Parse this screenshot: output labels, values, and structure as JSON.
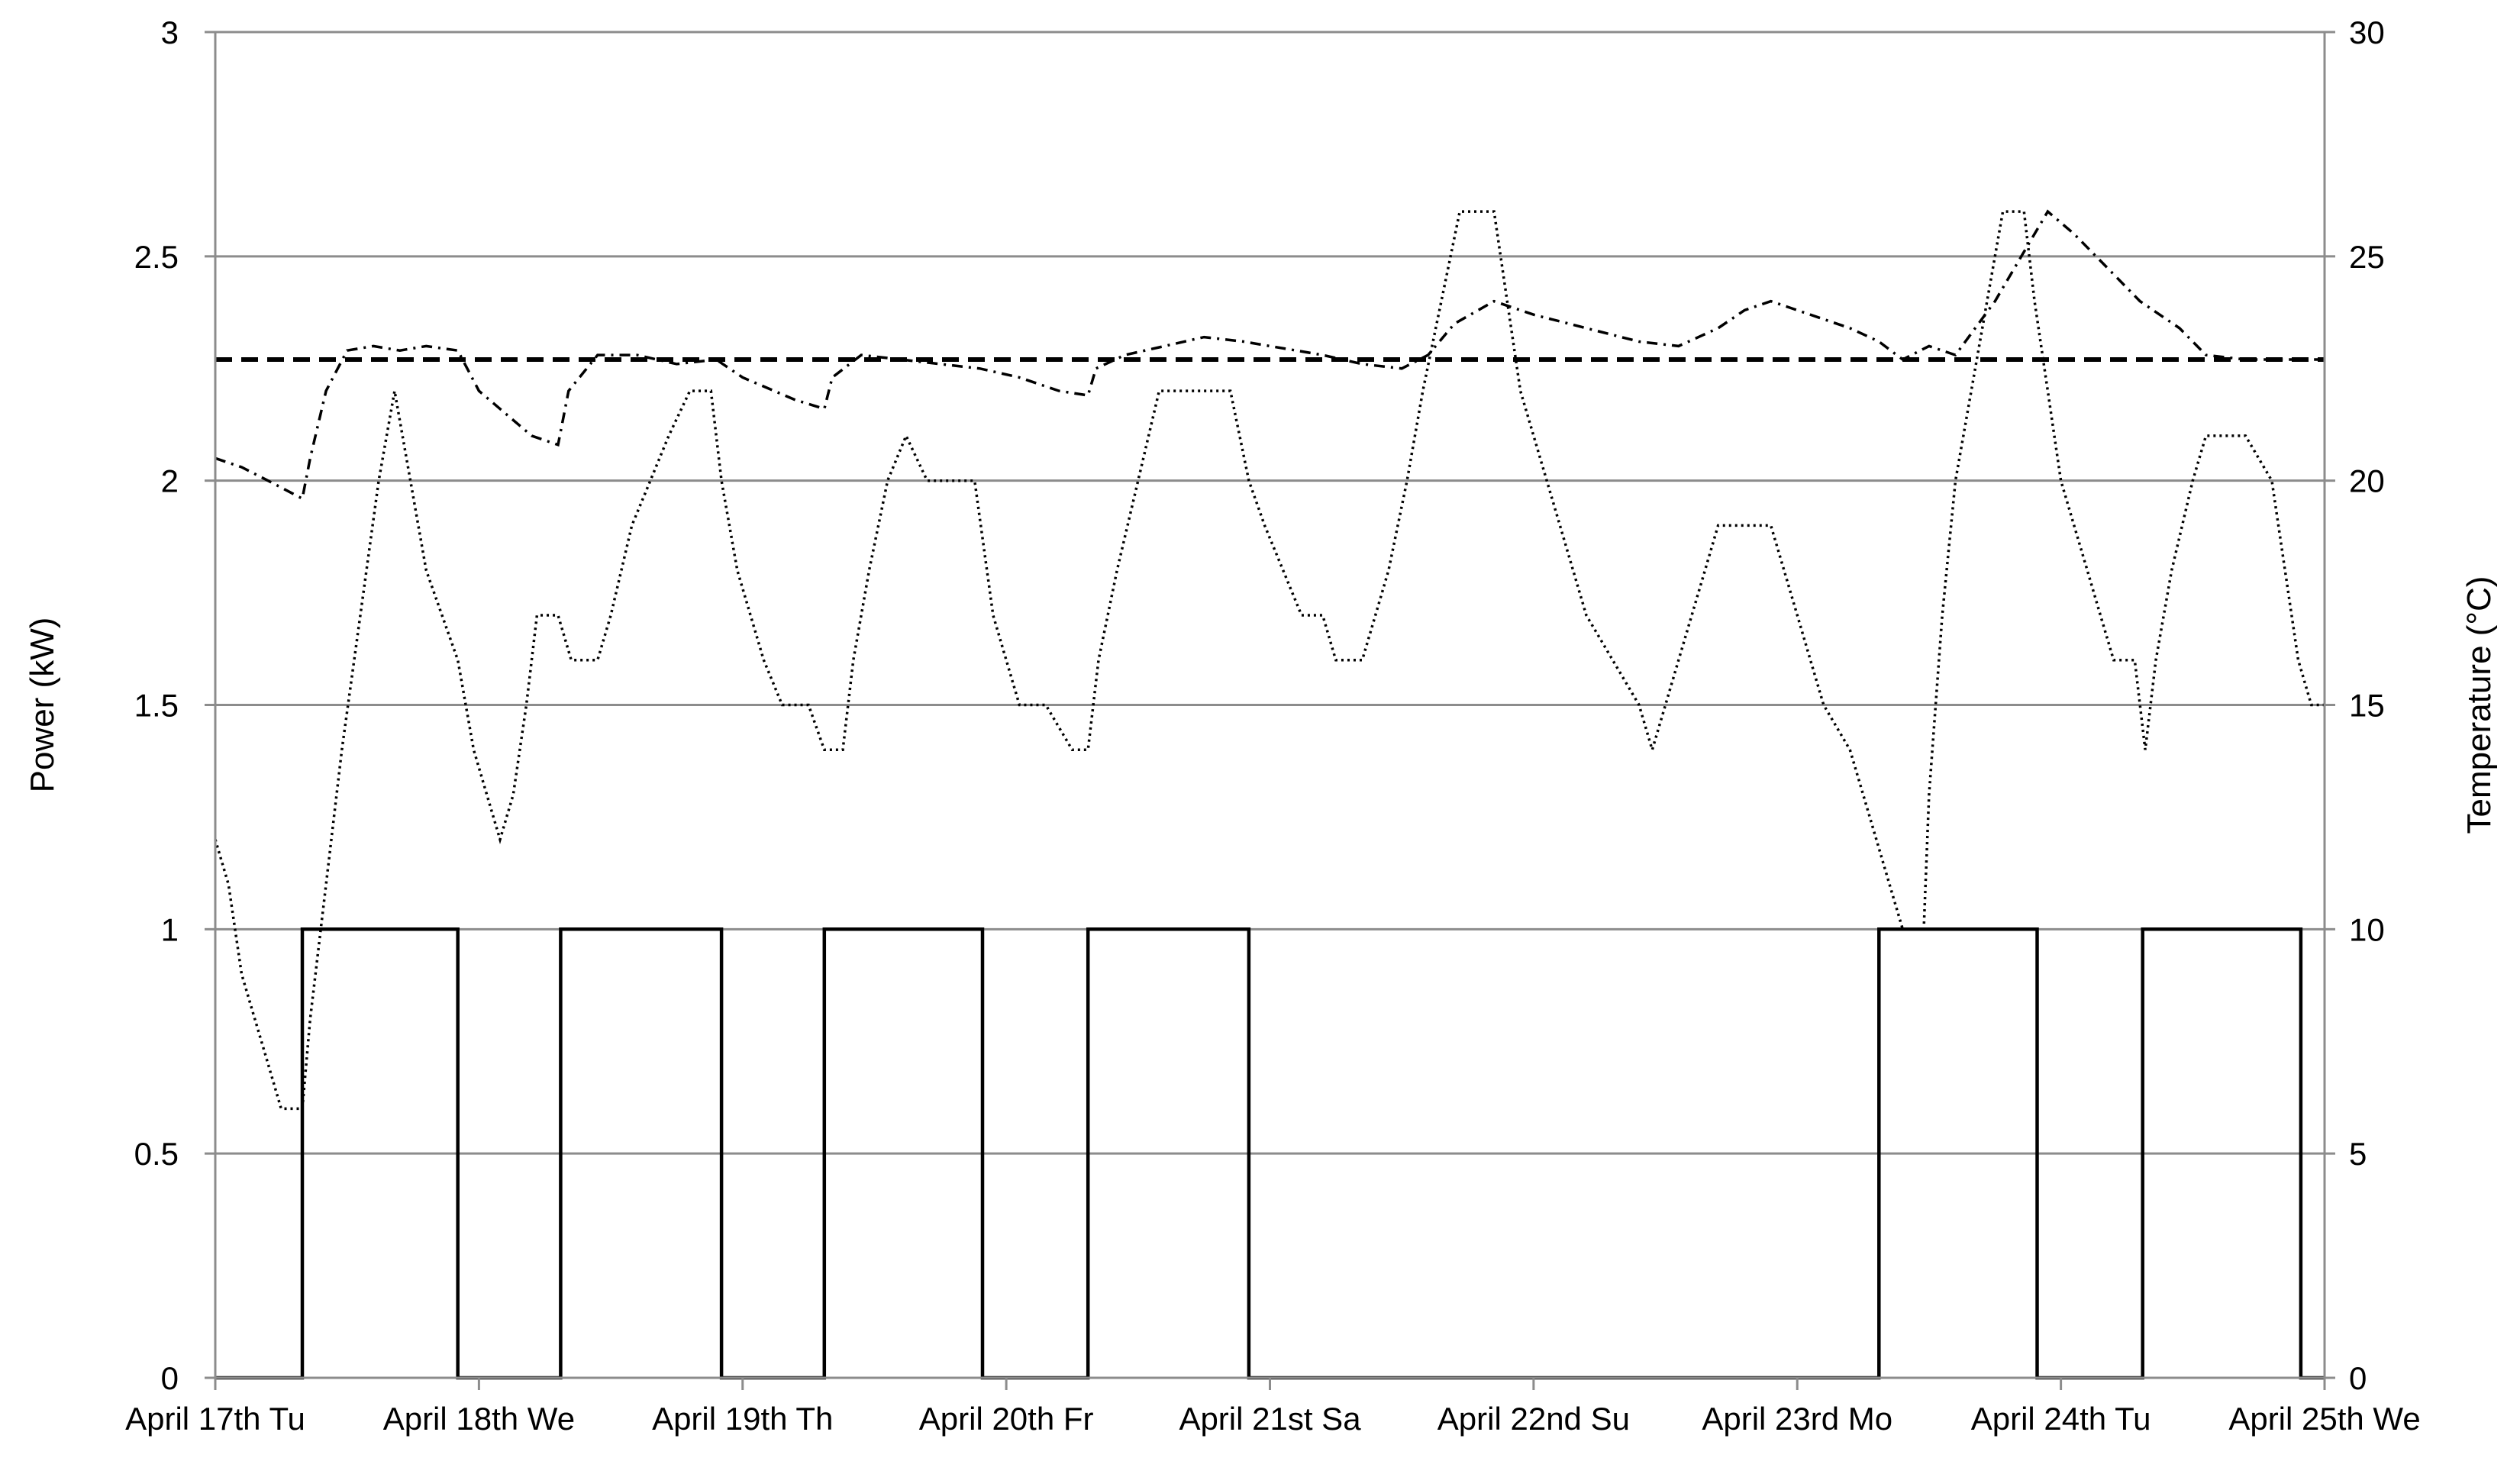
{
  "chart_data": {
    "type": "line",
    "title": "",
    "xlabel": "",
    "ylabel": "Power (kW)",
    "y2label": "Temperature (°C)",
    "x_unit": "days since April 17th Tu 00:00",
    "xlim": [
      0,
      8
    ],
    "ylim": [
      0,
      3
    ],
    "y2lim": [
      0,
      30
    ],
    "y_ticks": [
      "0",
      "0.5",
      "1",
      "1.5",
      "2",
      "2.5",
      "3"
    ],
    "y2_ticks": [
      "0",
      "5",
      "10",
      "15",
      "20",
      "25",
      "30"
    ],
    "x_tick_labels": [
      "April 17th Tu",
      "April 18th We",
      "April 19th Th",
      "April 20th Fr",
      "April 21st Sa",
      "April 22nd Su",
      "April 23rd Mo",
      "April 24th Tu",
      "April 25th We"
    ],
    "grid": "horizontal",
    "legend": "none",
    "series": [
      {
        "axis": "left",
        "style": "solid",
        "color": "#000000",
        "points": [
          [
            0,
            0
          ],
          [
            0.33,
            0
          ],
          [
            0.33,
            1
          ],
          [
            0.92,
            1
          ],
          [
            0.92,
            0
          ],
          [
            1.31,
            0
          ],
          [
            1.31,
            1
          ],
          [
            1.92,
            1
          ],
          [
            1.92,
            0
          ],
          [
            2.31,
            0
          ],
          [
            2.31,
            1
          ],
          [
            2.91,
            1
          ],
          [
            2.91,
            0
          ],
          [
            3.31,
            0
          ],
          [
            3.31,
            1
          ],
          [
            3.92,
            1
          ],
          [
            3.92,
            0
          ],
          [
            6.31,
            0
          ],
          [
            6.31,
            1
          ],
          [
            6.91,
            1
          ],
          [
            6.91,
            0
          ],
          [
            7.31,
            0
          ],
          [
            7.31,
            1
          ],
          [
            7.91,
            1
          ],
          [
            7.91,
            0
          ],
          [
            8,
            0
          ]
        ]
      },
      {
        "axis": "left",
        "style": "dashed",
        "color": "#000000",
        "points": [
          [
            0,
            2.27
          ],
          [
            8,
            2.27
          ]
        ]
      },
      {
        "axis": "right",
        "style": "dashdot",
        "color": "#000000",
        "points": [
          [
            0,
            20.5
          ],
          [
            0.1,
            20.3
          ],
          [
            0.2,
            20
          ],
          [
            0.33,
            19.6
          ],
          [
            0.36,
            20.5
          ],
          [
            0.42,
            22
          ],
          [
            0.5,
            22.9
          ],
          [
            0.6,
            23
          ],
          [
            0.7,
            22.9
          ],
          [
            0.8,
            23
          ],
          [
            0.92,
            22.9
          ],
          [
            1.0,
            22
          ],
          [
            1.1,
            21.5
          ],
          [
            1.2,
            21
          ],
          [
            1.3,
            20.8
          ],
          [
            1.34,
            22
          ],
          [
            1.45,
            22.8
          ],
          [
            1.6,
            22.8
          ],
          [
            1.75,
            22.6
          ],
          [
            1.9,
            22.7
          ],
          [
            2.0,
            22.3
          ],
          [
            2.2,
            21.8
          ],
          [
            2.31,
            21.6
          ],
          [
            2.34,
            22.3
          ],
          [
            2.45,
            22.8
          ],
          [
            2.6,
            22.7
          ],
          [
            2.75,
            22.6
          ],
          [
            2.9,
            22.5
          ],
          [
            3.05,
            22.3
          ],
          [
            3.2,
            22
          ],
          [
            3.31,
            21.9
          ],
          [
            3.34,
            22.5
          ],
          [
            3.45,
            22.8
          ],
          [
            3.6,
            23
          ],
          [
            3.75,
            23.2
          ],
          [
            3.9,
            23.1
          ],
          [
            4.0,
            23
          ],
          [
            4.1,
            22.9
          ],
          [
            4.2,
            22.8
          ],
          [
            4.35,
            22.6
          ],
          [
            4.5,
            22.5
          ],
          [
            4.6,
            22.8
          ],
          [
            4.7,
            23.5
          ],
          [
            4.85,
            24
          ],
          [
            5.0,
            23.7
          ],
          [
            5.2,
            23.4
          ],
          [
            5.4,
            23.1
          ],
          [
            5.55,
            23
          ],
          [
            5.7,
            23.4
          ],
          [
            5.8,
            23.8
          ],
          [
            5.9,
            24
          ],
          [
            6.0,
            23.8
          ],
          [
            6.2,
            23.4
          ],
          [
            6.31,
            23.1
          ],
          [
            6.4,
            22.7
          ],
          [
            6.5,
            23
          ],
          [
            6.6,
            22.8
          ],
          [
            6.75,
            24
          ],
          [
            6.85,
            25
          ],
          [
            6.95,
            26
          ],
          [
            7.05,
            25.5
          ],
          [
            7.2,
            24.6
          ],
          [
            7.3,
            24
          ],
          [
            7.45,
            23.4
          ],
          [
            7.55,
            22.8
          ],
          [
            7.7,
            22.7
          ],
          [
            7.85,
            22.7
          ],
          [
            8,
            22.7
          ]
        ]
      },
      {
        "axis": "right",
        "style": "dotted",
        "color": "#000000",
        "points": [
          [
            0,
            12
          ],
          [
            0.05,
            11
          ],
          [
            0.1,
            9
          ],
          [
            0.15,
            8
          ],
          [
            0.2,
            7
          ],
          [
            0.25,
            6
          ],
          [
            0.33,
            6
          ],
          [
            0.36,
            8
          ],
          [
            0.42,
            11
          ],
          [
            0.48,
            14
          ],
          [
            0.55,
            17
          ],
          [
            0.62,
            20
          ],
          [
            0.68,
            22
          ],
          [
            0.74,
            20
          ],
          [
            0.8,
            18
          ],
          [
            0.86,
            17
          ],
          [
            0.92,
            16
          ],
          [
            0.98,
            14
          ],
          [
            1.03,
            13
          ],
          [
            1.08,
            12
          ],
          [
            1.13,
            13
          ],
          [
            1.18,
            15
          ],
          [
            1.22,
            17
          ],
          [
            1.3,
            17
          ],
          [
            1.35,
            16
          ],
          [
            1.45,
            16
          ],
          [
            1.5,
            17
          ],
          [
            1.58,
            19
          ],
          [
            1.65,
            20
          ],
          [
            1.72,
            21
          ],
          [
            1.8,
            22
          ],
          [
            1.88,
            22
          ],
          [
            1.92,
            20
          ],
          [
            1.98,
            18
          ],
          [
            2.03,
            17
          ],
          [
            2.08,
            16
          ],
          [
            2.15,
            15
          ],
          [
            2.25,
            15
          ],
          [
            2.31,
            14
          ],
          [
            2.38,
            14
          ],
          [
            2.42,
            16
          ],
          [
            2.48,
            18
          ],
          [
            2.55,
            20
          ],
          [
            2.62,
            21
          ],
          [
            2.7,
            20
          ],
          [
            2.8,
            20
          ],
          [
            2.88,
            20
          ],
          [
            2.95,
            17
          ],
          [
            3.0,
            16
          ],
          [
            3.05,
            15
          ],
          [
            3.15,
            15
          ],
          [
            3.25,
            14
          ],
          [
            3.31,
            14
          ],
          [
            3.35,
            16
          ],
          [
            3.42,
            18
          ],
          [
            3.5,
            20
          ],
          [
            3.58,
            22
          ],
          [
            3.66,
            22
          ],
          [
            3.75,
            22
          ],
          [
            3.85,
            22
          ],
          [
            3.92,
            20
          ],
          [
            3.98,
            19
          ],
          [
            4.05,
            18
          ],
          [
            4.12,
            17
          ],
          [
            4.2,
            17
          ],
          [
            4.25,
            16
          ],
          [
            4.35,
            16
          ],
          [
            4.4,
            17
          ],
          [
            4.45,
            18
          ],
          [
            4.52,
            20
          ],
          [
            4.58,
            22
          ],
          [
            4.65,
            24
          ],
          [
            4.72,
            26
          ],
          [
            4.85,
            26
          ],
          [
            4.9,
            24
          ],
          [
            4.95,
            22
          ],
          [
            5.0,
            21
          ],
          [
            5.1,
            19
          ],
          [
            5.2,
            17
          ],
          [
            5.3,
            16
          ],
          [
            5.4,
            15
          ],
          [
            5.45,
            14
          ],
          [
            5.5,
            15
          ],
          [
            5.55,
            16
          ],
          [
            5.6,
            17
          ],
          [
            5.65,
            18
          ],
          [
            5.7,
            19
          ],
          [
            5.8,
            19
          ],
          [
            5.9,
            19
          ],
          [
            5.95,
            18
          ],
          [
            6.0,
            17
          ],
          [
            6.05,
            16
          ],
          [
            6.1,
            15
          ],
          [
            6.2,
            14
          ],
          [
            6.25,
            13
          ],
          [
            6.3,
            12
          ],
          [
            6.35,
            11
          ],
          [
            6.4,
            10
          ],
          [
            6.48,
            10
          ],
          [
            6.5,
            13
          ],
          [
            6.55,
            17
          ],
          [
            6.6,
            20
          ],
          [
            6.66,
            22
          ],
          [
            6.72,
            24
          ],
          [
            6.78,
            26
          ],
          [
            6.86,
            26
          ],
          [
            6.9,
            24
          ],
          [
            6.95,
            22
          ],
          [
            7.0,
            20
          ],
          [
            7.1,
            18
          ],
          [
            7.15,
            17
          ],
          [
            7.2,
            16
          ],
          [
            7.28,
            16
          ],
          [
            7.32,
            14
          ],
          [
            7.36,
            16
          ],
          [
            7.42,
            18
          ],
          [
            7.5,
            20
          ],
          [
            7.55,
            21
          ],
          [
            7.7,
            21
          ],
          [
            7.8,
            20
          ],
          [
            7.85,
            18
          ],
          [
            7.9,
            16
          ],
          [
            7.95,
            15
          ],
          [
            8,
            15
          ]
        ]
      }
    ]
  }
}
